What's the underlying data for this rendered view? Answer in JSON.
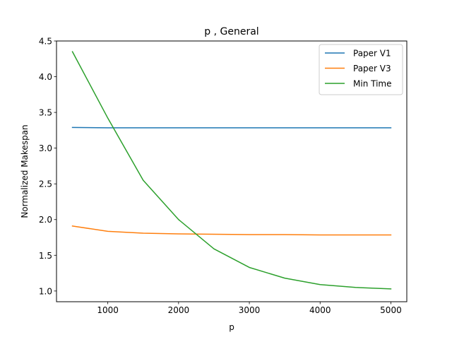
{
  "chart_data": {
    "type": "line",
    "title": "p , General",
    "xlabel": "p",
    "ylabel": "Normalized Makespan",
    "xlim": [
      275,
      5225
    ],
    "ylim": [
      0.85,
      4.5
    ],
    "xticks": [
      1000,
      2000,
      3000,
      4000,
      5000
    ],
    "yticks": [
      1.0,
      1.5,
      2.0,
      2.5,
      3.0,
      3.5,
      4.0,
      4.5
    ],
    "ytick_labels": [
      "1.0",
      "1.5",
      "2.0",
      "2.5",
      "3.0",
      "3.5",
      "4.0",
      "4.5"
    ],
    "grid": false,
    "legend_position": "top-right",
    "x": [
      500,
      1000,
      1500,
      2000,
      2500,
      3000,
      3500,
      4000,
      4500,
      5000
    ],
    "series": [
      {
        "name": "Paper V1",
        "color": "#1f77b4",
        "values": [
          3.29,
          3.285,
          3.285,
          3.285,
          3.285,
          3.285,
          3.285,
          3.285,
          3.285,
          3.285
        ]
      },
      {
        "name": "Paper V3",
        "color": "#ff7f0e",
        "values": [
          1.91,
          1.835,
          1.81,
          1.8,
          1.795,
          1.79,
          1.79,
          1.785,
          1.785,
          1.785
        ]
      },
      {
        "name": "Min Time",
        "color": "#2ca02c",
        "values": [
          4.35,
          3.42,
          2.55,
          2.0,
          1.59,
          1.33,
          1.18,
          1.09,
          1.05,
          1.03
        ]
      }
    ]
  }
}
